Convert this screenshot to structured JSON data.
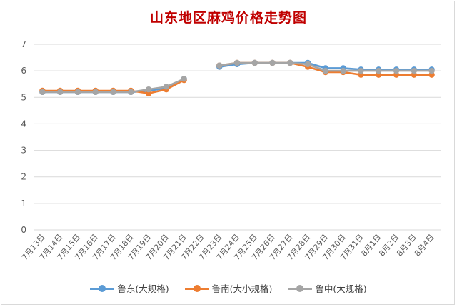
{
  "chart_data": {
    "type": "line",
    "title": "山东地区麻鸡价格走势图",
    "categories": [
      "7月13日",
      "7月14日",
      "7月15日",
      "7月16日",
      "7月17日",
      "7月18日",
      "7月19日",
      "7月20日",
      "7月21日",
      "7月22日",
      "7月23日",
      "7月24日",
      "7月25日",
      "7月26日",
      "7月27日",
      "7月28日",
      "7月29日",
      "7月30日",
      "7月31日",
      "8月1日",
      "8月2日",
      "8月3日",
      "8月4日"
    ],
    "ylim": [
      0,
      7
    ],
    "yticks": [
      0,
      1,
      2,
      3,
      4,
      5,
      6,
      7
    ],
    "grid": true,
    "legend_position": "bottom",
    "series": [
      {
        "name": "鲁东(大规格)",
        "color": "#5b9bd5",
        "values": [
          5.2,
          5.2,
          5.2,
          5.2,
          5.2,
          5.2,
          5.25,
          5.35,
          5.7,
          null,
          6.15,
          6.25,
          6.3,
          6.3,
          6.3,
          6.3,
          6.1,
          6.1,
          6.05,
          6.05,
          6.05,
          6.05,
          6.05
        ]
      },
      {
        "name": "鲁南(大小规格)",
        "color": "#ed7d31",
        "values": [
          5.25,
          5.25,
          5.25,
          5.25,
          5.25,
          5.25,
          5.15,
          5.3,
          5.65,
          null,
          6.2,
          6.3,
          6.3,
          6.3,
          6.3,
          6.15,
          5.95,
          5.95,
          5.85,
          5.85,
          5.85,
          5.85,
          5.85
        ]
      },
      {
        "name": "鲁中(大规格)",
        "color": "#a5a5a5",
        "values": [
          5.2,
          5.2,
          5.2,
          5.2,
          5.2,
          5.2,
          5.3,
          5.4,
          5.7,
          null,
          6.2,
          6.3,
          6.3,
          6.3,
          6.3,
          6.25,
          6.0,
          6.0,
          6.0,
          6.0,
          6.0,
          6.0,
          6.0
        ]
      }
    ]
  }
}
